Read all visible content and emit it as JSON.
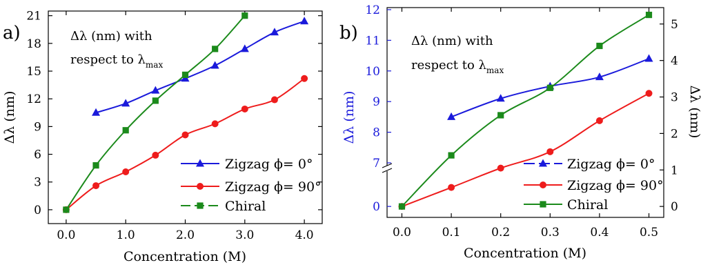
{
  "chart_data": [
    {
      "panel_label": "a)",
      "type": "line",
      "xlabel": "Concentration (M)",
      "ylabel": "Δλ (nm)",
      "xlim": [
        -0.3,
        4.3
      ],
      "ylim": [
        -1.5,
        21.5
      ],
      "x_ticks": [
        "0.0",
        "1.0",
        "2.0",
        "3.0",
        "4.0"
      ],
      "y_ticks": [
        "0",
        "3",
        "6",
        "9",
        "12",
        "15",
        "18",
        "21"
      ],
      "annotation": {
        "line1": "Δλ (nm) with",
        "line2": "respect to λ",
        "sub": "max"
      },
      "legend_position": "bottom-right",
      "series": [
        {
          "name": "Zigzag ϕ= 0°",
          "color": "#1a1adb",
          "marker": "triangle",
          "x": [
            0.5,
            1.0,
            1.5,
            2.0,
            2.5,
            3.0,
            3.5,
            4.0
          ],
          "y": [
            10.5,
            11.5,
            12.9,
            14.2,
            15.6,
            17.4,
            19.2,
            20.4
          ]
        },
        {
          "name": "Zigzag ϕ= 90°",
          "color": "#ee1c1c",
          "marker": "circle",
          "x": [
            0.0,
            0.5,
            1.0,
            1.5,
            2.0,
            2.5,
            3.0,
            3.5,
            4.0
          ],
          "y": [
            0.0,
            2.6,
            4.1,
            5.9,
            8.1,
            9.3,
            10.9,
            11.9,
            14.2
          ]
        },
        {
          "name": "Chiral",
          "color": "#1b8a1b",
          "marker": "square",
          "x": [
            0.0,
            0.5,
            1.0,
            1.5,
            2.0,
            2.5,
            3.0
          ],
          "y": [
            0.0,
            4.8,
            8.6,
            11.8,
            14.6,
            17.4,
            21.0
          ]
        }
      ]
    },
    {
      "panel_label": "b)",
      "type": "line",
      "xlabel": "Concentration (M)",
      "ylabel_left": "Δλ (nm)",
      "ylabel_right": "Δλ (nm)",
      "xlim": [
        -0.03,
        0.53
      ],
      "ylim_left_upper": [
        7,
        12
      ],
      "ylim_right": [
        -0.3,
        5.45
      ],
      "axis_break": "left axis broken between 0 and 7",
      "x_ticks": [
        "0.0",
        "0.1",
        "0.2",
        "0.3",
        "0.4",
        "0.5"
      ],
      "y_ticks_left": [
        "0",
        "7",
        "8",
        "9",
        "10",
        "11",
        "12"
      ],
      "y_ticks_right": [
        "0",
        "1",
        "2",
        "3",
        "4",
        "5"
      ],
      "annotation": {
        "line1": "Δλ (nm) with",
        "line2": "respect to λ",
        "sub": "max"
      },
      "legend_position": "bottom-right",
      "series": [
        {
          "name": "Zigzag ϕ= 0°",
          "color": "#1a1adb",
          "marker": "triangle",
          "axis": "left",
          "x": [
            0.1,
            0.2,
            0.3,
            0.4,
            0.5
          ],
          "y": [
            8.5,
            9.1,
            9.5,
            9.8,
            10.4
          ]
        },
        {
          "name": "Zigzag ϕ= 90°",
          "color": "#ee1c1c",
          "marker": "circle",
          "axis": "right",
          "x": [
            0.0,
            0.1,
            0.2,
            0.3,
            0.4,
            0.5
          ],
          "y": [
            0.0,
            0.52,
            1.05,
            1.5,
            2.35,
            3.1
          ]
        },
        {
          "name": "Chiral",
          "color": "#1b8a1b",
          "marker": "square",
          "axis": "right",
          "x": [
            0.0,
            0.1,
            0.2,
            0.3,
            0.4,
            0.5
          ],
          "y": [
            0.0,
            1.4,
            2.5,
            3.25,
            4.4,
            5.25
          ]
        }
      ]
    }
  ]
}
